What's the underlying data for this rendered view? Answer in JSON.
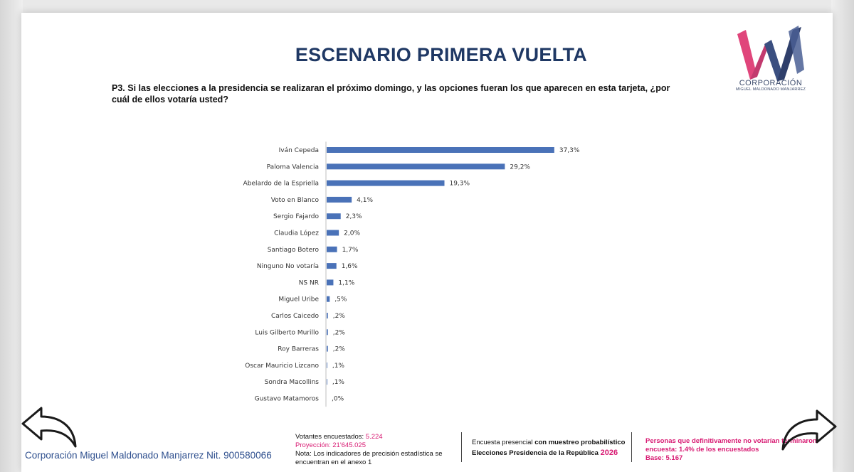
{
  "slide": {
    "title": "ESCENARIO PRIMERA VUELTA",
    "question": "P3. Si las elecciones a la presidencia se realizaran el próximo domingo, y las opciones fueran los que aparecen en esta tarjeta, ¿por cuál de ellos votaría usted?"
  },
  "logo": {
    "name": "CORPORACIÓN",
    "subtitle": "MIGUEL MALDONADO MANJARREZ",
    "colors": {
      "pink": "#e0457b",
      "navy": "#2f3f6b"
    }
  },
  "footer": {
    "corporation": "Corporación Miguel Maldonado Manjarrez Nit. 900580066",
    "voters_label": "Votantes encuestados: ",
    "voters_value": "5.224",
    "projection": "Proyección: 21'645.025",
    "note_line1": "Nota: Los indicadores de precisión estadística se",
    "note_line2": "encuentran en el anexo 1",
    "survey_prefix": "Encuesta presencial ",
    "survey_bold": "con muestreo probabilístico",
    "elections_label": "Elecciones Presidencia de la República ",
    "elections_year": "2026",
    "non_voters_line1": "Personas que definitivamente no votarían terminaron",
    "non_voters_line2": "encuesta: 1.4% de los encuestados",
    "base": "Base: 5.167"
  },
  "navigation": {
    "back_icon": "curved-arrow-left-icon",
    "forward_icon": "curved-arrow-right-icon"
  },
  "chart_data": {
    "type": "bar",
    "orientation": "horizontal",
    "bar_color": "#4a72b8",
    "xlim": [
      0,
      40
    ],
    "grid": false,
    "categories": [
      "Iván Cepeda",
      "Paloma Valencia",
      "Abelardo de la Espriella",
      "Voto en Blanco",
      "Sergio Fajardo",
      "Claudia López",
      "Santiago Botero",
      "Ninguno   No votaría",
      "NS NR",
      "Miguel Uribe",
      "Carlos Caicedo",
      "Luis Gilberto Murillo",
      "Roy Barreras",
      "Oscar Mauricio Lizcano",
      "Sondra Macollins",
      "Gustavo Matamoros"
    ],
    "values": [
      37.3,
      29.2,
      19.3,
      4.1,
      2.3,
      2.0,
      1.7,
      1.6,
      1.1,
      0.5,
      0.2,
      0.2,
      0.2,
      0.1,
      0.1,
      0.0
    ],
    "labels": [
      "37,3%",
      "29,2%",
      "19,3%",
      "4,1%",
      "2,3%",
      "2,0%",
      "1,7%",
      "1,6%",
      "1,1%",
      ",5%",
      ",2%",
      ",2%",
      ",2%",
      ",1%",
      ",1%",
      ",0%"
    ]
  }
}
